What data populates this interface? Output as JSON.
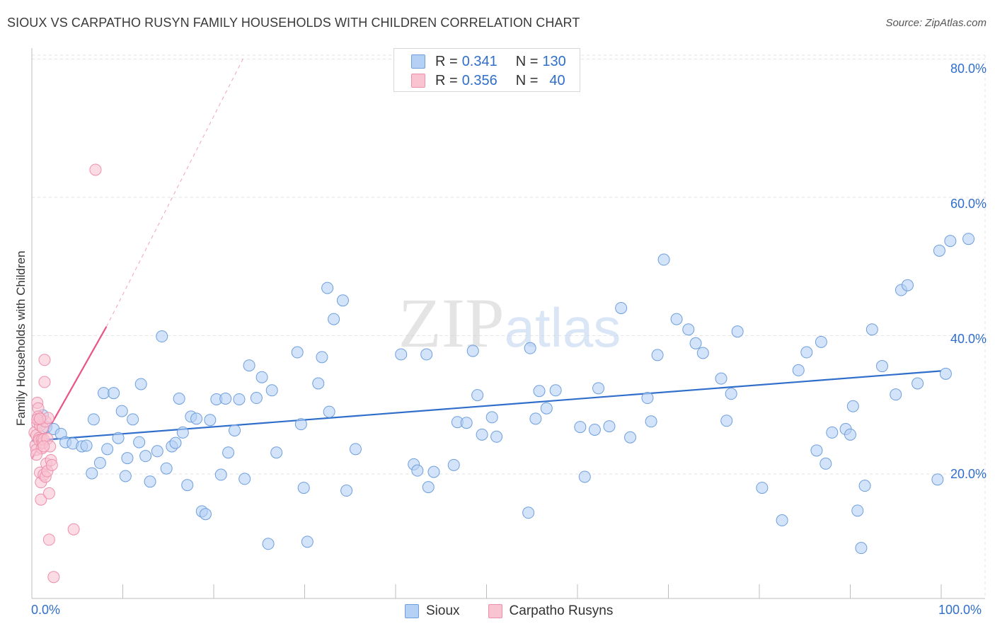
{
  "title": "SIOUX VS CARPATHO RUSYN FAMILY HOUSEHOLDS WITH CHILDREN CORRELATION CHART",
  "source": "Source: ZipAtlas.com",
  "watermark": "ZIPatlas",
  "legend_top": {
    "rows": [
      {
        "r_label": "R =",
        "r_value": "0.341",
        "n_label": "N =",
        "n_value": "130"
      },
      {
        "r_label": "R =",
        "r_value": "0.356",
        "n_label": "N =",
        "n_value": "40"
      }
    ]
  },
  "legend_bottom": {
    "items": [
      "Sioux",
      "Carpatho Rusyns"
    ]
  },
  "colors": {
    "sioux_fill": "#b5d0f5",
    "sioux_stroke": "#6e9fdc",
    "sioux_line": "#2f6ecb",
    "rusyn_fill": "#f9c3d2",
    "rusyn_stroke": "#ee8fac",
    "rusyn_line": "#e8548a",
    "grid": "#e3e3e3",
    "accent_text": "#2f6ecb"
  },
  "chart_data": {
    "type": "scatter",
    "title": "SIOUX VS CARPATHO RUSYN FAMILY HOUSEHOLDS WITH CHILDREN CORRELATION CHART",
    "xlabel": "",
    "ylabel": "Family Households with Children",
    "xlim": [
      0,
      100
    ],
    "ylim": [
      2,
      82
    ],
    "x_tick_labels": [
      "0.0%",
      "100.0%"
    ],
    "y_ticks": [
      20,
      40,
      60,
      80
    ],
    "y_tick_labels": [
      "20.0%",
      "40.0%",
      "60.0%",
      "80.0%"
    ],
    "grid": true,
    "legend_placement": "top-center",
    "series": [
      {
        "name": "Sioux",
        "R": 0.341,
        "N": 130,
        "trend": {
          "x": [
            0,
            100
          ],
          "y": [
            24.8,
            34.9
          ],
          "style": "solid"
        },
        "points": [
          [
            0.8,
            27.8
          ],
          [
            1.2,
            28.5
          ],
          [
            1.6,
            26.8
          ],
          [
            2.4,
            26.5
          ],
          [
            3.2,
            25.8
          ],
          [
            3.7,
            24.6
          ],
          [
            4.5,
            24.4
          ],
          [
            5.5,
            24.0
          ],
          [
            6.0,
            24.1
          ],
          [
            6.6,
            20.1
          ],
          [
            6.8,
            27.9
          ],
          [
            7.5,
            21.6
          ],
          [
            7.9,
            31.7
          ],
          [
            8.3,
            23.6
          ],
          [
            9.0,
            31.7
          ],
          [
            9.5,
            25.2
          ],
          [
            9.9,
            29.1
          ],
          [
            10.3,
            19.7
          ],
          [
            10.5,
            22.3
          ],
          [
            11.1,
            27.9
          ],
          [
            11.8,
            24.6
          ],
          [
            12.0,
            33.0
          ],
          [
            12.5,
            22.6
          ],
          [
            13.0,
            18.9
          ],
          [
            13.8,
            23.3
          ],
          [
            14.3,
            39.9
          ],
          [
            14.8,
            20.8
          ],
          [
            15.4,
            24.0
          ],
          [
            15.8,
            24.5
          ],
          [
            16.2,
            30.9
          ],
          [
            16.6,
            26.0
          ],
          [
            17.1,
            18.4
          ],
          [
            17.5,
            28.3
          ],
          [
            18.1,
            28.0
          ],
          [
            18.7,
            14.6
          ],
          [
            19.1,
            14.2
          ],
          [
            19.6,
            27.8
          ],
          [
            20.3,
            30.8
          ],
          [
            20.8,
            19.9
          ],
          [
            21.3,
            30.9
          ],
          [
            21.6,
            23.1
          ],
          [
            22.3,
            26.3
          ],
          [
            22.8,
            30.8
          ],
          [
            23.4,
            19.3
          ],
          [
            23.9,
            35.7
          ],
          [
            24.7,
            31.0
          ],
          [
            25.3,
            34.0
          ],
          [
            26.0,
            9.9
          ],
          [
            26.4,
            32.1
          ],
          [
            26.9,
            23.1
          ],
          [
            29.2,
            37.6
          ],
          [
            29.6,
            27.2
          ],
          [
            29.9,
            18.0
          ],
          [
            30.3,
            10.2
          ],
          [
            31.5,
            33.1
          ],
          [
            31.9,
            36.9
          ],
          [
            32.5,
            46.9
          ],
          [
            32.7,
            29.0
          ],
          [
            33.2,
            42.4
          ],
          [
            34.2,
            45.1
          ],
          [
            34.6,
            17.6
          ],
          [
            35.6,
            23.6
          ],
          [
            40.6,
            37.3
          ],
          [
            42.0,
            21.4
          ],
          [
            42.4,
            20.5
          ],
          [
            43.4,
            37.3
          ],
          [
            43.6,
            18.1
          ],
          [
            44.2,
            20.3
          ],
          [
            46.4,
            21.3
          ],
          [
            46.8,
            27.5
          ],
          [
            47.8,
            27.4
          ],
          [
            48.5,
            37.8
          ],
          [
            49.0,
            31.4
          ],
          [
            49.5,
            25.7
          ],
          [
            50.6,
            28.2
          ],
          [
            51.1,
            25.4
          ],
          [
            54.6,
            14.4
          ],
          [
            54.8,
            38.2
          ],
          [
            55.4,
            28.0
          ],
          [
            55.8,
            32.0
          ],
          [
            56.6,
            29.5
          ],
          [
            57.6,
            32.1
          ],
          [
            60.3,
            26.8
          ],
          [
            60.8,
            19.6
          ],
          [
            61.9,
            26.4
          ],
          [
            62.3,
            32.4
          ],
          [
            63.5,
            26.9
          ],
          [
            64.8,
            44.0
          ],
          [
            65.8,
            25.3
          ],
          [
            67.7,
            31.0
          ],
          [
            68.1,
            27.6
          ],
          [
            68.8,
            37.2
          ],
          [
            69.5,
            51.0
          ],
          [
            70.9,
            42.4
          ],
          [
            72.2,
            40.9
          ],
          [
            73.0,
            38.9
          ],
          [
            73.8,
            37.5
          ],
          [
            75.8,
            33.8
          ],
          [
            76.4,
            27.7
          ],
          [
            76.9,
            31.6
          ],
          [
            77.6,
            40.6
          ],
          [
            80.3,
            18.0
          ],
          [
            82.5,
            13.3
          ],
          [
            84.3,
            35.0
          ],
          [
            85.2,
            37.6
          ],
          [
            86.3,
            23.4
          ],
          [
            86.8,
            39.1
          ],
          [
            87.3,
            21.5
          ],
          [
            89.5,
            26.5
          ],
          [
            90.0,
            25.7
          ],
          [
            90.3,
            29.8
          ],
          [
            90.8,
            14.7
          ],
          [
            91.2,
            9.3
          ],
          [
            91.6,
            18.3
          ],
          [
            92.4,
            40.9
          ],
          [
            93.5,
            35.6
          ],
          [
            95.0,
            31.5
          ],
          [
            95.6,
            46.6
          ],
          [
            96.3,
            47.3
          ],
          [
            97.4,
            33.1
          ],
          [
            99.6,
            19.2
          ],
          [
            99.8,
            52.3
          ],
          [
            100.5,
            34.5
          ],
          [
            101.0,
            53.7
          ],
          [
            103.0,
            54.0
          ],
          [
            88.0,
            26.0
          ]
        ]
      },
      {
        "name": "Carpatho Rusyns",
        "R": 0.356,
        "N": 40,
        "trend": {
          "x_solid": [
            0,
            8.2
          ],
          "y_solid": [
            22.2,
            41.3
          ],
          "x_dashed": [
            8.2,
            23.4
          ],
          "y_dashed": [
            41.3,
            80.5
          ]
        },
        "points": [
          [
            0.3,
            26.0
          ],
          [
            0.4,
            24.2
          ],
          [
            0.5,
            23.5
          ],
          [
            0.5,
            25.6
          ],
          [
            0.6,
            27.4
          ],
          [
            0.6,
            30.3
          ],
          [
            0.7,
            29.5
          ],
          [
            0.7,
            28.3
          ],
          [
            0.8,
            25.2
          ],
          [
            0.8,
            24.9
          ],
          [
            0.9,
            27.0
          ],
          [
            0.9,
            20.2
          ],
          [
            1.0,
            18.8
          ],
          [
            1.0,
            16.3
          ],
          [
            1.1,
            23.7
          ],
          [
            1.1,
            25.0
          ],
          [
            1.2,
            24.5
          ],
          [
            1.2,
            26.7
          ],
          [
            1.3,
            25.0
          ],
          [
            1.3,
            19.9
          ],
          [
            1.4,
            33.3
          ],
          [
            1.4,
            36.5
          ],
          [
            1.5,
            27.6
          ],
          [
            1.5,
            19.6
          ],
          [
            1.6,
            21.5
          ],
          [
            1.7,
            25.1
          ],
          [
            1.7,
            20.4
          ],
          [
            1.8,
            28.1
          ],
          [
            1.9,
            10.5
          ],
          [
            1.9,
            17.2
          ],
          [
            2.0,
            24.0
          ],
          [
            2.1,
            22.0
          ],
          [
            2.2,
            21.3
          ],
          [
            2.4,
            5.1
          ],
          [
            4.6,
            12.0
          ],
          [
            7.0,
            64.0
          ],
          [
            0.5,
            22.8
          ],
          [
            0.6,
            27.9
          ],
          [
            0.9,
            28.0
          ],
          [
            1.3,
            24.0
          ]
        ]
      }
    ]
  }
}
